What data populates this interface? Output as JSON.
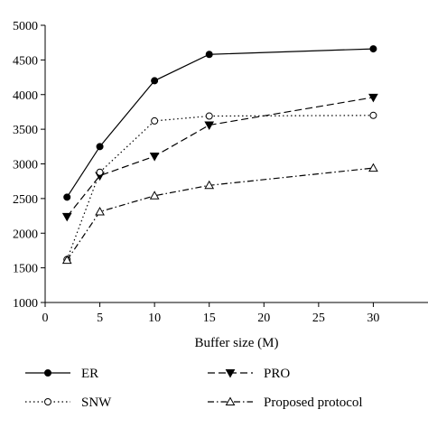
{
  "chart_data": {
    "type": "line",
    "xlabel": "Buffer size (M)",
    "ylabel": "",
    "xlim": [
      0,
      35
    ],
    "ylim": [
      1000,
      5000
    ],
    "xticks": [
      0,
      5,
      10,
      15,
      20,
      25,
      30
    ],
    "yticks": [
      1000,
      1500,
      2000,
      2500,
      3000,
      3500,
      4000,
      4500,
      5000
    ],
    "grid": false,
    "legend_position": "bottom",
    "x": [
      2,
      5,
      10,
      15,
      30
    ],
    "series": [
      {
        "name": "ER",
        "values": [
          2520,
          3250,
          4200,
          4580,
          4660
        ],
        "line_style": "solid",
        "marker": "filled-circle",
        "color": "#000000"
      },
      {
        "name": "PRO",
        "values": [
          2240,
          2830,
          3110,
          3560,
          3960
        ],
        "line_style": "dashed",
        "marker": "filled-triangle-down",
        "color": "#000000"
      },
      {
        "name": "SNW",
        "values": [
          1620,
          2880,
          3620,
          3690,
          3700
        ],
        "line_style": "dotted",
        "marker": "open-circle",
        "color": "#000000"
      },
      {
        "name": "Proposed protocol",
        "values": [
          1610,
          2310,
          2540,
          2690,
          2940
        ],
        "line_style": "dash-dot",
        "marker": "open-triangle-up",
        "color": "#000000"
      }
    ]
  }
}
